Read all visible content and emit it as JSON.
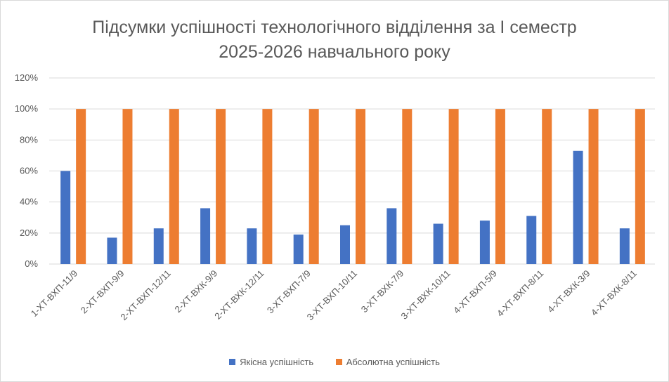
{
  "chart_data": {
    "type": "bar",
    "title_line1": "Підсумки успішності технологічного відділення за І семестр",
    "title_line2": "2025-2026 навчального року",
    "categories": [
      "1-ХТ-ВХП-11/9",
      "2-ХТ-ВХП-9/9",
      "2-ХТ-ВХП-12/11",
      "2-ХТ-ВХК-9/9",
      "2-ХТ-ВХК-12/11",
      "3-ХТ-ВХП-7/9",
      "3-ХТ-ВХП-10/11",
      "3-ХТ-ВХК-7/9",
      "3-ХТ-ВХК-10/11",
      "4-ХТ-ВХП-5/9",
      "4-ХТ-ВХП-8/11",
      "4-ХТ-ВХК-3/9",
      "4-ХТ-ВХК-8/11"
    ],
    "series": [
      {
        "name": "Якісна успішність",
        "color": "#4472c4",
        "values": [
          60,
          17,
          23,
          36,
          23,
          19,
          25,
          36,
          26,
          28,
          31,
          73,
          23
        ]
      },
      {
        "name": "Абсолютна успішність",
        "color": "#ed7d31",
        "values": [
          100,
          100,
          100,
          100,
          100,
          100,
          100,
          100,
          100,
          100,
          100,
          100,
          100
        ]
      }
    ],
    "y_ticks": [
      "0%",
      "20%",
      "40%",
      "60%",
      "80%",
      "100%",
      "120%"
    ],
    "ylim": [
      0,
      120
    ],
    "grid": true,
    "legend_position": "bottom",
    "gridline_color": "#d9d9d9",
    "label_color": "#595959"
  }
}
